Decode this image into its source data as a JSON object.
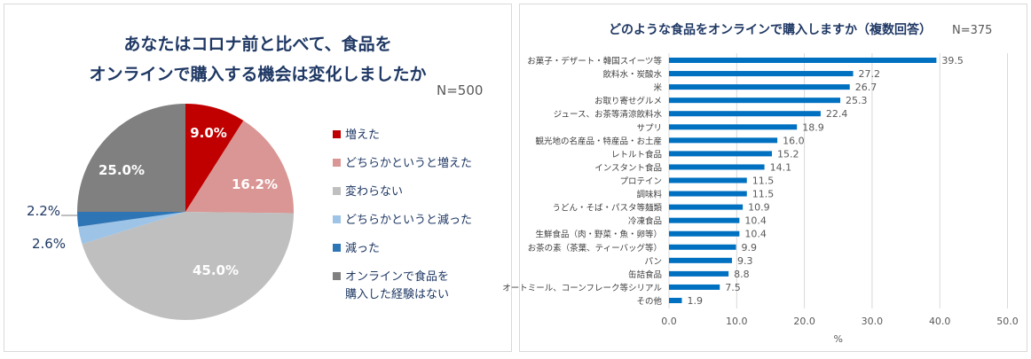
{
  "chart_data": [
    {
      "type": "pie",
      "title": "あなたはコロナ前と比べて、食品をオンラインで購入する機会は変化しましたか",
      "title_lines": [
        "あなたはコロナ前と比べて、食品を",
        "オンラインで購入する機会は変化しましたか"
      ],
      "sample_size": "N=500",
      "legend_position": "right",
      "slices": [
        {
          "label": "増えた",
          "value": 9.0,
          "display": "9.0%",
          "color": "#c00000",
          "label_color": "#ffffff"
        },
        {
          "label": "どちらかというと増えた",
          "value": 16.2,
          "display": "16.2%",
          "color": "#d99694",
          "label_color": "#ffffff"
        },
        {
          "label": "変わらない",
          "value": 45.0,
          "display": "45.0%",
          "color": "#bfbfbf",
          "label_color": "#ffffff"
        },
        {
          "label": "どちらかというと減った",
          "value": 2.6,
          "display": "2.6%",
          "color": "#9dc3e6",
          "label_color": "#1f3864"
        },
        {
          "label": "減った",
          "value": 2.2,
          "display": "2.2%",
          "color": "#2e75b6",
          "label_color": "#1f3864"
        },
        {
          "label": "オンラインで食品を\n購入した経験はない",
          "value": 25.0,
          "display": "25.0%",
          "color": "#808080",
          "label_color": "#ffffff"
        }
      ]
    },
    {
      "type": "bar",
      "orientation": "horizontal",
      "title": "どのような食品をオンラインで購入しますか（複数回答）",
      "sample_size": "N=375",
      "categories": [
        "お菓子・デザート・韓国スイーツ等",
        "飲料水・炭酸水",
        "米",
        "お取り寄せグルメ",
        "ジュース、お茶等清涼飲料水",
        "サプリ",
        "観光地の名産品・特産品・お土産",
        "レトルト食品",
        "インスタント食品",
        "プロテイン",
        "調味料",
        "うどん・そば・パスタ等麺類",
        "冷凍食品",
        "生鮮食品（肉・野菜・魚・卵等）",
        "お茶の素（茶葉、ティーバッグ等）",
        "パン",
        "缶詰食品",
        "オートミール、コーンフレーク等シリアル",
        "その他"
      ],
      "values": [
        39.5,
        27.2,
        26.7,
        25.3,
        22.4,
        18.9,
        16.0,
        15.2,
        14.1,
        11.5,
        11.5,
        10.9,
        10.4,
        10.4,
        9.9,
        9.3,
        8.8,
        7.5,
        1.9
      ],
      "value_labels": [
        "39.5",
        "27.2",
        "26.7",
        "25.3",
        "22.4",
        "18.9",
        "16.0",
        "15.2",
        "14.1",
        "11.5",
        "11.5",
        "10.9",
        "10.4",
        "10.4",
        "9.9",
        "9.3",
        "8.8",
        "7.5",
        "1.9"
      ],
      "xlabel": "%",
      "xlim": [
        0,
        50
      ],
      "xticks": [
        0,
        10,
        20,
        30,
        40,
        50
      ],
      "xtick_labels": [
        "0.0",
        "10.0",
        "20.0",
        "30.0",
        "40.0",
        "50.0"
      ],
      "grid": true,
      "bar_color": "#0070c0"
    }
  ]
}
